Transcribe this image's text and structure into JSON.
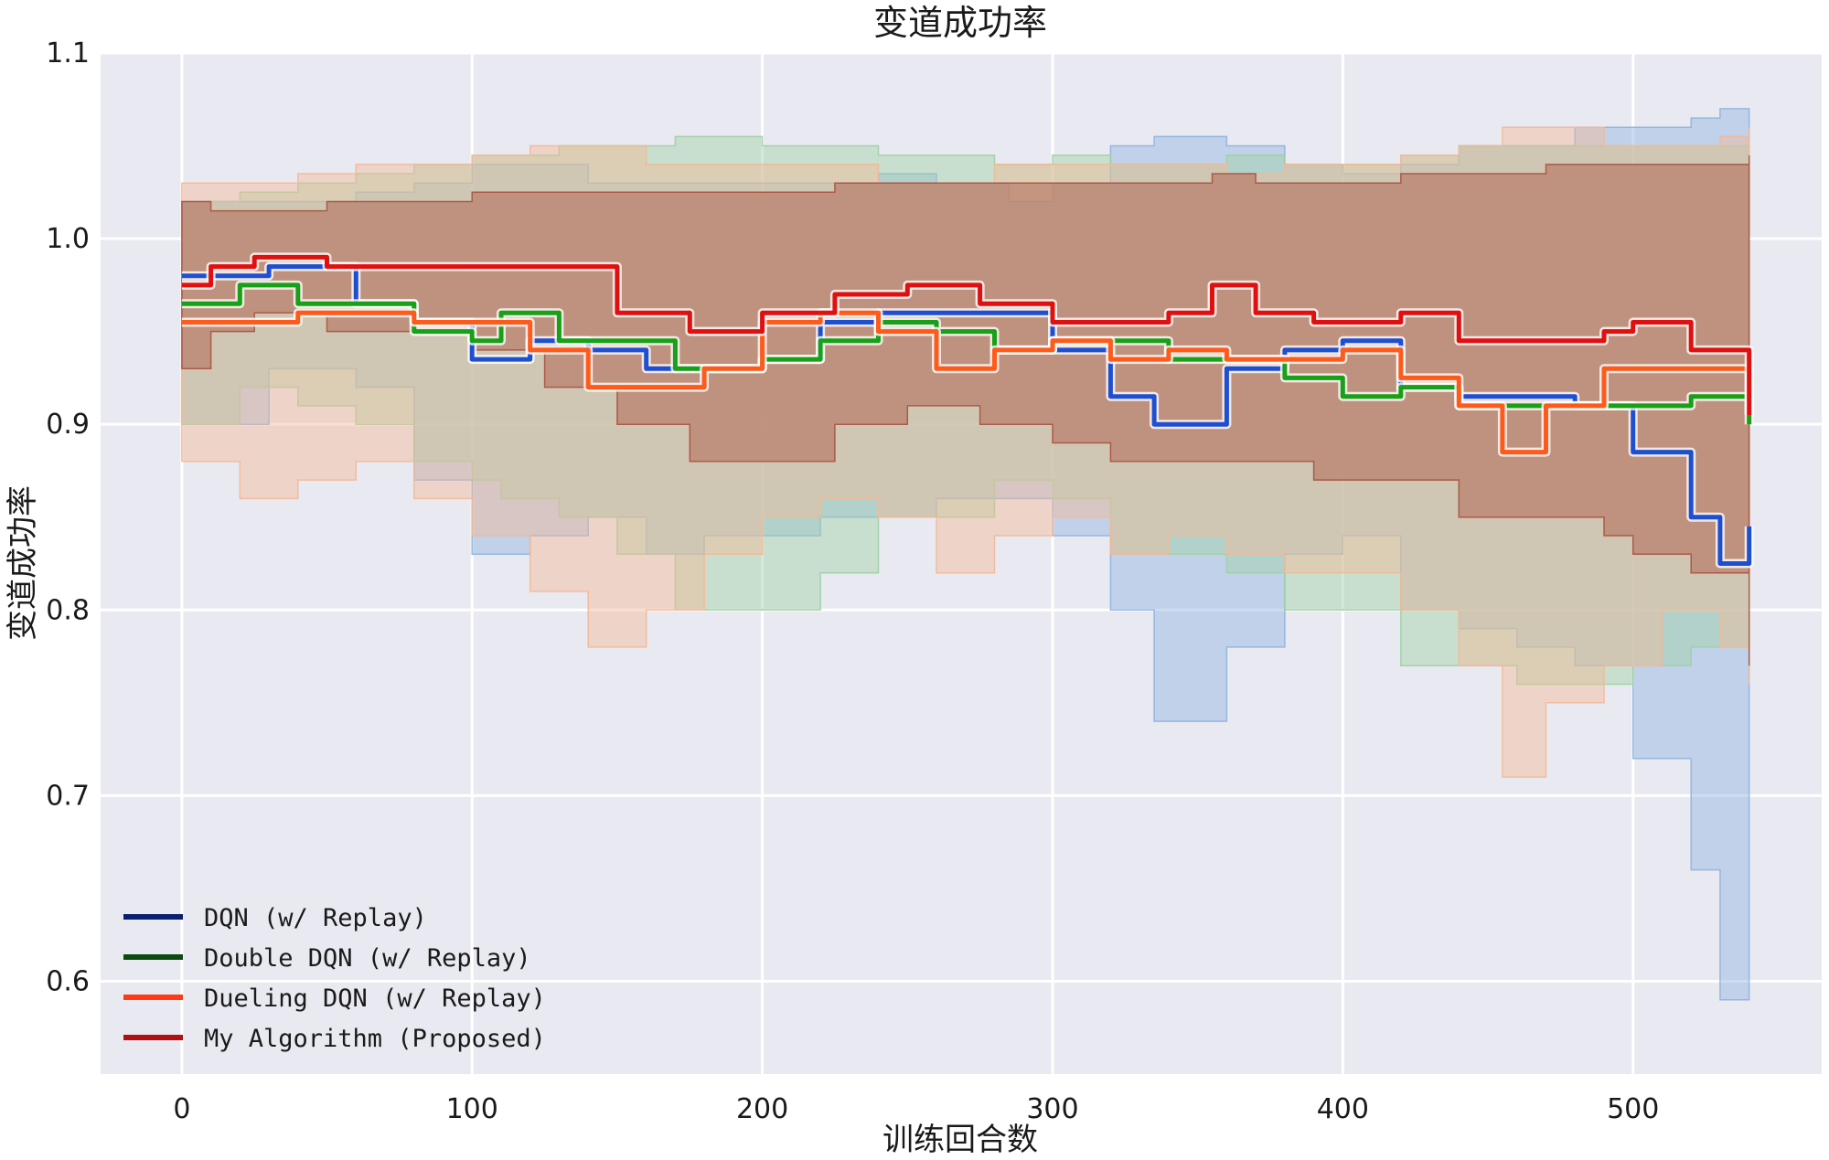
{
  "chart_data": {
    "type": "line",
    "title": "变道成功率",
    "xlabel": "训练回合数",
    "ylabel": "变道成功率",
    "xlim": [
      -28,
      565
    ],
    "ylim": [
      0.55,
      1.1
    ],
    "xticks": [
      0,
      100,
      200,
      300,
      400,
      500
    ],
    "yticks": [
      0.6,
      0.7,
      0.8,
      0.9,
      1.0,
      1.1
    ],
    "xtick_labels": [
      "0",
      "100",
      "200",
      "300",
      "400",
      "500"
    ],
    "ytick_labels": [
      "0.6",
      "0.7",
      "0.8",
      "0.9",
      "1.0",
      "1.1"
    ],
    "grid": true,
    "legend_position": "lower-left",
    "series": [
      {
        "name": "DQN (w/ Replay)",
        "color": "#1f4fd1",
        "band_color": "#8fb3e0",
        "x": [
          0,
          30,
          60,
          80,
          100,
          120,
          140,
          160,
          180,
          200,
          220,
          240,
          260,
          285,
          300,
          320,
          335,
          360,
          380,
          400,
          420,
          440,
          460,
          480,
          500,
          520,
          530,
          540
        ],
        "mean": [
          0.98,
          0.985,
          0.965,
          0.955,
          0.935,
          0.945,
          0.94,
          0.93,
          0.93,
          0.935,
          0.955,
          0.96,
          0.96,
          0.96,
          0.94,
          0.915,
          0.9,
          0.93,
          0.94,
          0.945,
          0.92,
          0.915,
          0.915,
          0.91,
          0.885,
          0.85,
          0.825,
          0.845
        ],
        "upper": [
          1.02,
          1.02,
          1.025,
          1.03,
          1.04,
          1.04,
          1.03,
          1.03,
          1.03,
          1.03,
          1.03,
          1.035,
          1.03,
          1.02,
          1.03,
          1.05,
          1.055,
          1.05,
          1.04,
          1.035,
          1.04,
          1.05,
          1.05,
          1.06,
          1.06,
          1.065,
          1.07,
          1.07
        ],
        "lower": [
          0.9,
          0.93,
          0.92,
          0.87,
          0.83,
          0.84,
          0.85,
          0.83,
          0.84,
          0.84,
          0.85,
          0.85,
          0.86,
          0.86,
          0.84,
          0.8,
          0.74,
          0.78,
          0.83,
          0.84,
          0.8,
          0.79,
          0.78,
          0.77,
          0.72,
          0.66,
          0.59,
          0.6
        ]
      },
      {
        "name": "Double DQN (w/ Replay)",
        "color": "#18a018",
        "band_color": "#9fd0a4",
        "x": [
          0,
          20,
          40,
          60,
          80,
          100,
          110,
          130,
          150,
          170,
          200,
          220,
          240,
          260,
          280,
          300,
          320,
          340,
          360,
          380,
          400,
          420,
          440,
          460,
          480,
          500,
          520,
          540
        ],
        "mean": [
          0.965,
          0.975,
          0.965,
          0.965,
          0.95,
          0.945,
          0.96,
          0.945,
          0.945,
          0.93,
          0.935,
          0.945,
          0.955,
          0.95,
          0.94,
          0.945,
          0.945,
          0.935,
          0.935,
          0.925,
          0.915,
          0.92,
          0.91,
          0.91,
          0.91,
          0.91,
          0.915,
          0.9
        ],
        "upper": [
          1.02,
          1.025,
          1.03,
          1.035,
          1.04,
          1.045,
          1.045,
          1.05,
          1.05,
          1.055,
          1.05,
          1.05,
          1.045,
          1.045,
          1.04,
          1.045,
          1.04,
          1.04,
          1.045,
          1.04,
          1.04,
          1.045,
          1.05,
          1.05,
          1.05,
          1.05,
          1.05,
          1.045
        ],
        "lower": [
          0.9,
          0.92,
          0.91,
          0.9,
          0.88,
          0.87,
          0.86,
          0.85,
          0.83,
          0.8,
          0.8,
          0.82,
          0.85,
          0.85,
          0.87,
          0.86,
          0.83,
          0.83,
          0.82,
          0.8,
          0.8,
          0.77,
          0.77,
          0.76,
          0.76,
          0.77,
          0.78,
          0.76
        ]
      },
      {
        "name": "Dueling DQN (w/ Replay)",
        "color": "#ff5a1a",
        "band_color": "#f4b896",
        "x": [
          0,
          20,
          40,
          60,
          80,
          100,
          120,
          140,
          160,
          180,
          200,
          220,
          240,
          260,
          280,
          300,
          320,
          340,
          360,
          380,
          400,
          420,
          440,
          455,
          470,
          490,
          510,
          530,
          540
        ],
        "mean": [
          0.955,
          0.955,
          0.96,
          0.96,
          0.955,
          0.955,
          0.94,
          0.92,
          0.92,
          0.93,
          0.955,
          0.96,
          0.95,
          0.93,
          0.94,
          0.945,
          0.935,
          0.94,
          0.935,
          0.935,
          0.94,
          0.925,
          0.91,
          0.885,
          0.91,
          0.93,
          0.93,
          0.93,
          0.905
        ],
        "upper": [
          1.03,
          1.03,
          1.035,
          1.04,
          1.04,
          1.045,
          1.05,
          1.05,
          1.04,
          1.04,
          1.04,
          1.04,
          1.03,
          1.03,
          1.04,
          1.04,
          1.04,
          1.04,
          1.035,
          1.04,
          1.04,
          1.045,
          1.05,
          1.06,
          1.06,
          1.05,
          1.05,
          1.055,
          1.06
        ],
        "lower": [
          0.88,
          0.86,
          0.87,
          0.88,
          0.86,
          0.84,
          0.81,
          0.78,
          0.8,
          0.83,
          0.85,
          0.86,
          0.85,
          0.82,
          0.84,
          0.85,
          0.83,
          0.84,
          0.83,
          0.82,
          0.82,
          0.8,
          0.77,
          0.71,
          0.75,
          0.77,
          0.8,
          0.78,
          0.76
        ]
      },
      {
        "name": "My Algorithm (Proposed)",
        "color": "#e01010",
        "band_color": "#a8523f",
        "x": [
          0,
          10,
          25,
          50,
          100,
          125,
          150,
          175,
          200,
          225,
          250,
          275,
          300,
          320,
          340,
          355,
          370,
          390,
          420,
          440,
          470,
          490,
          500,
          520,
          540
        ],
        "mean": [
          0.975,
          0.985,
          0.99,
          0.985,
          0.985,
          0.985,
          0.96,
          0.95,
          0.96,
          0.97,
          0.975,
          0.965,
          0.955,
          0.955,
          0.96,
          0.975,
          0.96,
          0.955,
          0.96,
          0.945,
          0.945,
          0.95,
          0.955,
          0.94,
          0.905
        ],
        "upper": [
          1.02,
          1.015,
          1.015,
          1.02,
          1.025,
          1.025,
          1.025,
          1.025,
          1.025,
          1.03,
          1.03,
          1.03,
          1.03,
          1.03,
          1.03,
          1.035,
          1.03,
          1.03,
          1.035,
          1.035,
          1.04,
          1.04,
          1.04,
          1.04,
          1.045
        ],
        "lower": [
          0.93,
          0.95,
          0.96,
          0.95,
          0.94,
          0.92,
          0.9,
          0.88,
          0.88,
          0.9,
          0.91,
          0.9,
          0.89,
          0.88,
          0.88,
          0.88,
          0.88,
          0.87,
          0.87,
          0.85,
          0.85,
          0.84,
          0.83,
          0.82,
          0.77
        ]
      }
    ],
    "legend": {
      "line_colors": [
        "#0a1f6e",
        "#0c4a12",
        "#ff3a14",
        "#b01010"
      ]
    }
  }
}
